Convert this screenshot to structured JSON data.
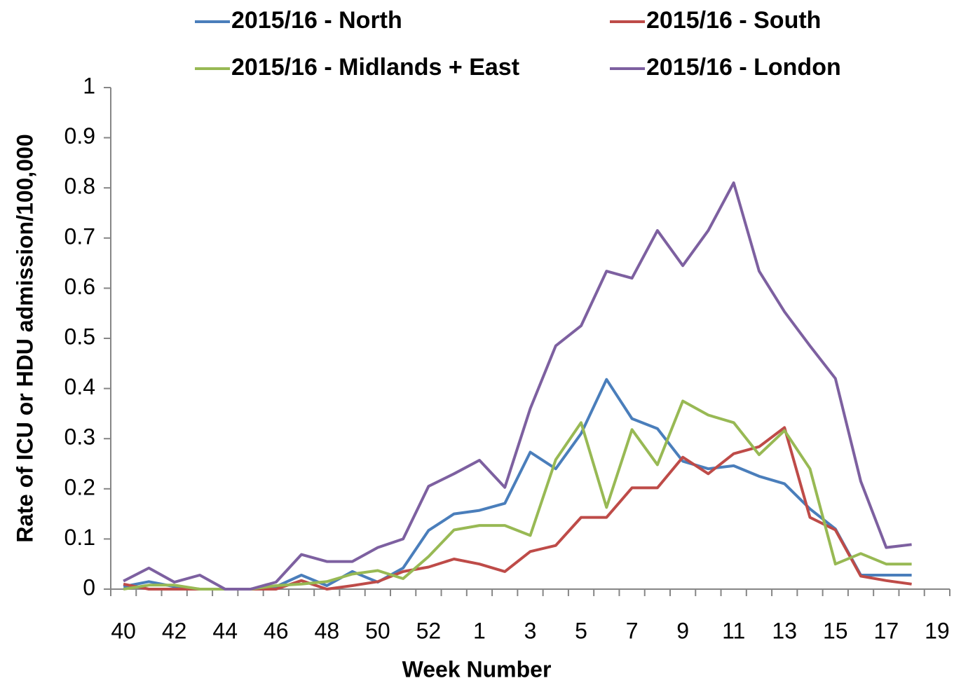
{
  "chart_data": {
    "type": "line",
    "x_label": "Week Number",
    "y_label": "Rate of ICU or HDU admission/100,000",
    "categories": [
      "40",
      null,
      "42",
      null,
      "44",
      null,
      "46",
      null,
      "48",
      null,
      "50",
      null,
      "52",
      null,
      "1",
      null,
      "3",
      null,
      "5",
      null,
      "7",
      null,
      "9",
      null,
      "11",
      null,
      "13",
      null,
      "15",
      null,
      "17",
      null,
      "19"
    ],
    "series": [
      {
        "name": "2015/16 - North",
        "color": "#4a7ebb",
        "values": [
          0.005,
          0.015,
          0.005,
          0,
          0,
          0,
          0.005,
          0.028,
          0.007,
          0.035,
          0.014,
          0.042,
          0.117,
          0.15,
          0.157,
          0.171,
          0.273,
          0.24,
          0.31,
          0.418,
          0.34,
          0.32,
          0.255,
          0.24,
          0.246,
          0.225,
          0.21,
          0.16,
          0.12,
          0.028,
          0.028,
          0.028,
          null
        ]
      },
      {
        "name": "2015/16 - South",
        "color": "#be4b48",
        "values": [
          0.01,
          0,
          0,
          0,
          0,
          0,
          0,
          0.017,
          0,
          0.007,
          0.015,
          0.035,
          0.044,
          0.06,
          0.05,
          0.035,
          0.075,
          0.087,
          0.143,
          0.143,
          0.202,
          0.202,
          0.263,
          0.23,
          0.27,
          0.284,
          0.322,
          0.143,
          0.118,
          0.026,
          0.017,
          0.01,
          null
        ]
      },
      {
        "name": "2015/16 - Midlands + East",
        "color": "#98b954",
        "values": [
          0,
          0.008,
          0.008,
          0,
          0,
          0,
          0.007,
          0.01,
          0.015,
          0.03,
          0.037,
          0.021,
          0.065,
          0.118,
          0.127,
          0.127,
          0.107,
          0.258,
          0.332,
          0.163,
          0.318,
          0.248,
          0.375,
          0.347,
          0.332,
          0.268,
          0.316,
          0.24,
          0.05,
          0.071,
          0.05,
          0.05,
          null
        ]
      },
      {
        "name": "2015/16 - London",
        "color": "#7d60a0",
        "values": [
          0.016,
          0.042,
          0.014,
          0.028,
          0,
          0,
          0.014,
          0.069,
          0.055,
          0.055,
          0.083,
          0.1,
          0.205,
          0.23,
          0.257,
          0.203,
          0.36,
          0.485,
          0.525,
          0.634,
          0.62,
          0.715,
          0.645,
          0.715,
          0.81,
          0.634,
          0.553,
          0.485,
          0.42,
          0.215,
          0.083,
          0.089,
          null
        ]
      }
    ],
    "ylim": [
      0,
      1
    ],
    "yticks": [
      0,
      0.1,
      0.2,
      0.3,
      0.4,
      0.5,
      0.6,
      0.7,
      0.8,
      0.9,
      1
    ],
    "grid": false,
    "legend": "top"
  }
}
